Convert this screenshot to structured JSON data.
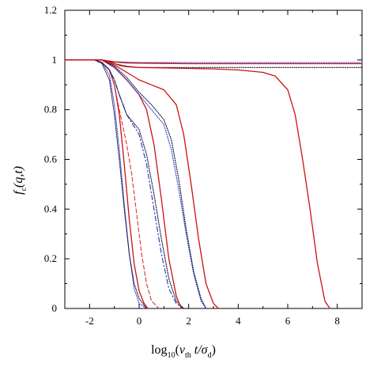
{
  "chart_data": {
    "type": "line",
    "title": "",
    "xlim": [
      -3,
      9
    ],
    "ylim": [
      0,
      1.2
    ],
    "xticks": [
      -2,
      0,
      2,
      4,
      6,
      8
    ],
    "xtick_labels": [
      "-2",
      "0",
      "2",
      "4",
      "6",
      "8"
    ],
    "yticks": [
      0,
      0.2,
      0.4,
      0.6,
      0.8,
      1,
      1.2
    ],
    "ytick_labels": [
      "0",
      "0.2",
      "0.4",
      "0.6",
      "0.8",
      "1",
      "1.2"
    ],
    "xlabel": {
      "prefix": "log",
      "sub": "10",
      "open": "(",
      "v": "v",
      "v_sub": "th",
      "mid": " t/",
      "sigma": "σ",
      "sigma_sub": "d",
      "close": ")"
    },
    "ylabel": {
      "f": "f",
      "f_sub": "c",
      "args": "(q,t)"
    },
    "grid": false,
    "legend": "none",
    "series": [
      {
        "style": "dotted",
        "color": "#3344dd",
        "x": [
          -3.0,
          -1.5,
          -1.0,
          0.0,
          2.0,
          9.0
        ],
        "y": [
          1.0,
          1.0,
          0.993,
          0.99,
          0.99,
          0.99
        ]
      },
      {
        "style": "solid",
        "color": "#cc1111",
        "x": [
          -3.0,
          -1.5,
          -1.0,
          -0.5,
          0.0,
          1.0,
          2.0,
          9.0
        ],
        "y": [
          1.0,
          1.0,
          0.992,
          0.988,
          0.987,
          0.986,
          0.985,
          0.985
        ]
      },
      {
        "style": "dotted",
        "color": "#111133",
        "x": [
          -3.0,
          -1.5,
          -1.0,
          -0.5,
          0.0,
          2.0,
          9.0
        ],
        "y": [
          1.0,
          1.0,
          0.985,
          0.975,
          0.97,
          0.97,
          0.97
        ]
      },
      {
        "style": "solid",
        "color": "#cc1111",
        "x": [
          -3.0,
          -1.5,
          -1.1,
          -0.8,
          -0.5,
          0.0,
          1.0,
          2.0,
          3.0,
          4.0,
          5.0,
          5.5,
          6.0,
          6.3,
          6.6,
          6.9,
          7.2,
          7.5,
          7.7
        ],
        "y": [
          1.0,
          1.0,
          0.99,
          0.978,
          0.973,
          0.97,
          0.968,
          0.966,
          0.964,
          0.96,
          0.95,
          0.935,
          0.88,
          0.78,
          0.6,
          0.4,
          0.18,
          0.03,
          0.0
        ]
      },
      {
        "style": "dotted",
        "color": "#3344dd",
        "x": [
          -3.0,
          -1.8,
          -1.5,
          -1.2,
          -1.0,
          -0.8,
          -0.6,
          -0.4,
          -0.2,
          0.0,
          0.3
        ],
        "y": [
          1.0,
          1.0,
          0.99,
          0.94,
          0.82,
          0.64,
          0.42,
          0.22,
          0.08,
          0.02,
          0.0
        ]
      },
      {
        "style": "dotted",
        "color": "#111133",
        "x": [
          -3.0,
          -1.8,
          -1.5,
          -1.2,
          -1.0,
          -0.8,
          -0.6,
          -0.4,
          -0.2,
          0.0,
          0.3
        ],
        "y": [
          1.0,
          1.0,
          0.985,
          0.92,
          0.78,
          0.6,
          0.4,
          0.22,
          0.1,
          0.04,
          0.0
        ]
      },
      {
        "style": "solid",
        "color": "#cc1111",
        "x": [
          -3.0,
          -1.8,
          -1.5,
          -1.2,
          -1.0,
          -0.8,
          -0.6,
          -0.4,
          -0.2,
          0.0,
          0.2,
          0.35
        ],
        "y": [
          1.0,
          1.0,
          0.99,
          0.96,
          0.9,
          0.78,
          0.58,
          0.36,
          0.18,
          0.07,
          0.02,
          0.0
        ]
      },
      {
        "style": "dashed",
        "color": "#dd3333",
        "x": [
          -3.0,
          -1.8,
          -1.5,
          -1.2,
          -1.0,
          -0.8,
          -0.5,
          -0.3,
          -0.1,
          0.1,
          0.3,
          0.5,
          0.8
        ],
        "y": [
          1.0,
          1.0,
          0.99,
          0.96,
          0.9,
          0.8,
          0.66,
          0.54,
          0.38,
          0.22,
          0.1,
          0.03,
          0.0
        ]
      },
      {
        "style": "dashdot",
        "color": "#2233bb",
        "x": [
          -3.0,
          -1.8,
          -1.5,
          -1.2,
          -1.0,
          -0.8,
          -0.5,
          0.0,
          0.3,
          0.6,
          0.9,
          1.2,
          1.5,
          1.8
        ],
        "y": [
          1.0,
          1.0,
          0.99,
          0.96,
          0.92,
          0.86,
          0.78,
          0.7,
          0.58,
          0.4,
          0.22,
          0.08,
          0.02,
          0.0
        ]
      },
      {
        "style": "dotted",
        "color": "#111133",
        "x": [
          -3.0,
          -1.8,
          -1.5,
          -1.2,
          -1.0,
          -0.8,
          -0.5,
          0.0,
          0.3,
          0.6,
          0.9,
          1.2,
          1.5,
          1.8
        ],
        "y": [
          1.0,
          1.0,
          0.99,
          0.96,
          0.92,
          0.86,
          0.78,
          0.72,
          0.62,
          0.46,
          0.28,
          0.12,
          0.03,
          0.0
        ]
      },
      {
        "style": "solid",
        "color": "#cc1111",
        "x": [
          -3.0,
          -1.5,
          -1.0,
          -0.5,
          0.0,
          0.3,
          0.6,
          0.9,
          1.2,
          1.5,
          1.7
        ],
        "y": [
          1.0,
          1.0,
          0.97,
          0.92,
          0.86,
          0.8,
          0.66,
          0.44,
          0.2,
          0.05,
          0.0
        ]
      },
      {
        "style": "dotted",
        "color": "#3344dd",
        "x": [
          -3.0,
          -1.5,
          -1.0,
          -0.5,
          0.0,
          0.5,
          1.0,
          1.3,
          1.6,
          1.9,
          2.2,
          2.5,
          2.7
        ],
        "y": [
          1.0,
          1.0,
          0.97,
          0.92,
          0.86,
          0.8,
          0.74,
          0.64,
          0.48,
          0.3,
          0.14,
          0.03,
          0.0
        ]
      },
      {
        "style": "dotted",
        "color": "#111133",
        "x": [
          -3.0,
          -1.5,
          -1.0,
          -0.5,
          0.0,
          0.5,
          1.0,
          1.3,
          1.6,
          1.9,
          2.2,
          2.5,
          2.7
        ],
        "y": [
          1.0,
          1.0,
          0.975,
          0.93,
          0.87,
          0.82,
          0.76,
          0.68,
          0.52,
          0.32,
          0.15,
          0.04,
          0.0
        ]
      },
      {
        "style": "solid",
        "color": "#cc1111",
        "x": [
          -3.0,
          -1.5,
          -1.0,
          -0.5,
          0.0,
          0.5,
          1.0,
          1.5,
          1.8,
          2.1,
          2.4,
          2.7,
          3.0,
          3.2
        ],
        "y": [
          1.0,
          1.0,
          0.98,
          0.95,
          0.92,
          0.9,
          0.88,
          0.82,
          0.7,
          0.5,
          0.28,
          0.1,
          0.02,
          0.0
        ]
      }
    ]
  }
}
